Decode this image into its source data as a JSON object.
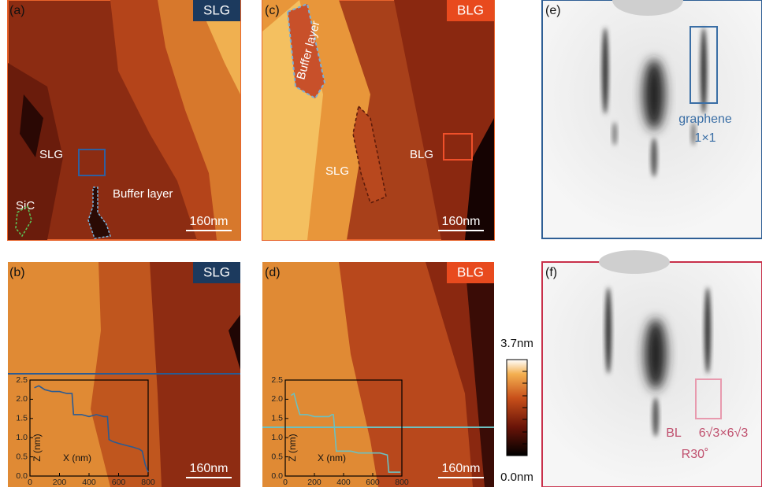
{
  "panels": [
    {
      "label": "(a)",
      "badge": "SLG",
      "annotations": [
        "SLG",
        "SiC",
        "Buffer layer"
      ],
      "scale_bar": "160nm"
    },
    {
      "label": "(c)",
      "badge": "BLG",
      "annotations": [
        "Buffer layer",
        "SLG",
        "BLG"
      ],
      "scale_bar": "160nm"
    },
    {
      "label": "(e)",
      "annotations": [
        "graphene",
        "1×1"
      ]
    },
    {
      "label": "(b)",
      "badge": "SLG",
      "scale_bar": "160nm"
    },
    {
      "label": "(d)",
      "badge": "BLG",
      "scale_bar": "160nm"
    },
    {
      "label": "(f)",
      "annotations": [
        "BL",
        "6√3×6√3",
        "R30˚"
      ]
    }
  ],
  "colorbar": {
    "max_label": "3.7nm",
    "min_label": "0.0nm"
  },
  "chart_data": [
    {
      "type": "line",
      "x_label": "X (nm)",
      "y_label": "Z (nm)",
      "color": "#2a5b93",
      "xlim": [
        0,
        800
      ],
      "ylim": [
        0,
        2.5
      ],
      "xticks": [
        0,
        200,
        400,
        600,
        800
      ],
      "yticks": [
        {
          "value": 0,
          "label": "0.0"
        },
        0.5,
        {
          "value": 1,
          "label": "1.0"
        },
        1.5,
        {
          "value": 2,
          "label": "2.0"
        },
        2.5
      ],
      "x": [
        30,
        60,
        100,
        150,
        200,
        250,
        285,
        295,
        350,
        400,
        450,
        500,
        525,
        535,
        560,
        600,
        650,
        700,
        740,
        760,
        780,
        800
      ],
      "values": [
        2.3,
        2.35,
        2.25,
        2.2,
        2.2,
        2.15,
        2.15,
        1.6,
        1.6,
        1.55,
        1.6,
        1.55,
        1.55,
        0.95,
        0.9,
        0.85,
        0.8,
        0.75,
        0.7,
        0.65,
        0.3,
        0.1
      ]
    },
    {
      "type": "line",
      "x_label": "X (nm)",
      "y_label": "Z (nm)",
      "color": "#6cc0c0",
      "xlim": [
        0,
        800
      ],
      "ylim": [
        0,
        2.5
      ],
      "xticks": [
        0,
        200,
        400,
        600,
        800
      ],
      "yticks": [
        {
          "value": 0,
          "label": "0.0"
        },
        0.5,
        {
          "value": 1,
          "label": "1.0"
        },
        1.5,
        {
          "value": 2,
          "label": "2.0"
        },
        2.5
      ],
      "x": [
        40,
        60,
        80,
        100,
        150,
        200,
        250,
        300,
        320,
        330,
        350,
        400,
        450,
        500,
        550,
        600,
        650,
        700,
        710,
        740,
        770,
        790
      ],
      "values": [
        2.1,
        2.15,
        1.85,
        1.6,
        1.6,
        1.55,
        1.55,
        1.55,
        1.6,
        1.6,
        0.65,
        0.65,
        0.65,
        0.6,
        0.6,
        0.6,
        0.6,
        0.55,
        0.1,
        0.1,
        0.1,
        0.1
      ]
    }
  ]
}
